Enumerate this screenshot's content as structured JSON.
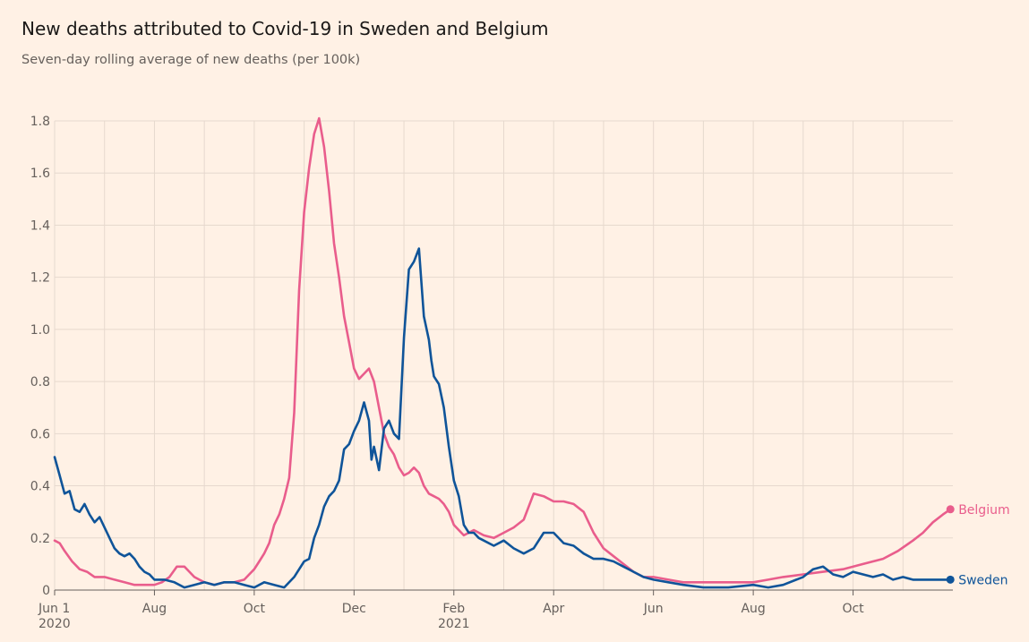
{
  "title": "New deaths attributed to Covid-19 in Sweden and Belgium",
  "subtitle": "Seven-day rolling average of new deaths (per 100k)",
  "colors": {
    "Belgium": "#e95d8c",
    "Sweden": "#0f5499"
  },
  "chart_data": {
    "type": "line",
    "title": "New deaths attributed to Covid-19 in Sweden and Belgium",
    "subtitle": "Seven-day rolling average of new deaths (per 100k)",
    "xlabel": "",
    "ylabel": "",
    "x_unit": "months since Jun 1 2020",
    "xlim": [
      0,
      18.0
    ],
    "ylim": [
      0,
      1.8
    ],
    "grid": true,
    "y_ticks": [
      {
        "value": 0,
        "label": "0"
      },
      {
        "value": 0.2,
        "label": "0.2"
      },
      {
        "value": 0.4,
        "label": "0.4"
      },
      {
        "value": 0.6,
        "label": "0.6"
      },
      {
        "value": 0.8,
        "label": "0.8"
      },
      {
        "value": 1.0,
        "label": "1.0"
      },
      {
        "value": 1.2,
        "label": "1.2"
      },
      {
        "value": 1.4,
        "label": "1.4"
      },
      {
        "value": 1.6,
        "label": "1.6"
      },
      {
        "value": 1.8,
        "label": "1.8"
      }
    ],
    "x_ticks": [
      {
        "value": 0,
        "label": "Jun 1",
        "sublabel": "2020"
      },
      {
        "value": 2,
        "label": "Aug",
        "sublabel": ""
      },
      {
        "value": 4,
        "label": "Oct",
        "sublabel": ""
      },
      {
        "value": 6,
        "label": "Dec",
        "sublabel": ""
      },
      {
        "value": 8,
        "label": "Feb",
        "sublabel": "2021"
      },
      {
        "value": 10,
        "label": "Apr",
        "sublabel": ""
      },
      {
        "value": 12,
        "label": "Jun",
        "sublabel": ""
      },
      {
        "value": 14,
        "label": "Aug",
        "sublabel": ""
      },
      {
        "value": 16,
        "label": "Oct",
        "sublabel": ""
      }
    ],
    "minor_grid_x": [
      1,
      3,
      5,
      7,
      9,
      11,
      13,
      15,
      17
    ],
    "series": [
      {
        "name": "Belgium",
        "label": "Belgium",
        "x": [
          0,
          0.1,
          0.2,
          0.35,
          0.5,
          0.65,
          0.8,
          1.0,
          1.2,
          1.4,
          1.6,
          1.8,
          2.0,
          2.15,
          2.3,
          2.45,
          2.6,
          2.7,
          2.8,
          2.9,
          3.0,
          3.2,
          3.4,
          3.6,
          3.8,
          3.9,
          4.0,
          4.1,
          4.2,
          4.3,
          4.4,
          4.5,
          4.6,
          4.7,
          4.8,
          4.9,
          5.0,
          5.1,
          5.2,
          5.3,
          5.4,
          5.5,
          5.6,
          5.7,
          5.8,
          5.9,
          6.0,
          6.1,
          6.2,
          6.3,
          6.4,
          6.5,
          6.6,
          6.7,
          6.8,
          6.9,
          7.0,
          7.1,
          7.2,
          7.3,
          7.4,
          7.5,
          7.6,
          7.7,
          7.8,
          7.9,
          8.0,
          8.2,
          8.4,
          8.6,
          8.8,
          9.0,
          9.2,
          9.4,
          9.6,
          9.8,
          10.0,
          10.2,
          10.4,
          10.6,
          10.8,
          11.0,
          11.2,
          11.4,
          11.6,
          11.8,
          12.0,
          12.3,
          12.6,
          13.0,
          13.5,
          14.0,
          14.3,
          14.6,
          15.0,
          15.4,
          15.8,
          16.2,
          16.6,
          16.9,
          17.2,
          17.4,
          17.6,
          17.8,
          17.95
        ],
        "values": [
          0.19,
          0.18,
          0.15,
          0.11,
          0.08,
          0.07,
          0.05,
          0.05,
          0.04,
          0.03,
          0.02,
          0.02,
          0.02,
          0.03,
          0.05,
          0.09,
          0.09,
          0.07,
          0.05,
          0.04,
          0.03,
          0.02,
          0.03,
          0.03,
          0.04,
          0.06,
          0.08,
          0.11,
          0.14,
          0.18,
          0.25,
          0.29,
          0.35,
          0.43,
          0.68,
          1.15,
          1.45,
          1.62,
          1.75,
          1.81,
          1.7,
          1.53,
          1.33,
          1.2,
          1.05,
          0.95,
          0.85,
          0.81,
          0.83,
          0.85,
          0.8,
          0.7,
          0.6,
          0.55,
          0.52,
          0.47,
          0.44,
          0.45,
          0.47,
          0.45,
          0.4,
          0.37,
          0.36,
          0.35,
          0.33,
          0.3,
          0.25,
          0.21,
          0.23,
          0.21,
          0.2,
          0.22,
          0.24,
          0.27,
          0.37,
          0.36,
          0.34,
          0.34,
          0.33,
          0.3,
          0.22,
          0.16,
          0.13,
          0.1,
          0.07,
          0.05,
          0.05,
          0.04,
          0.03,
          0.03,
          0.03,
          0.03,
          0.04,
          0.05,
          0.06,
          0.07,
          0.08,
          0.1,
          0.12,
          0.15,
          0.19,
          0.22,
          0.26,
          0.29,
          0.31
        ]
      },
      {
        "name": "Sweden",
        "label": "Sweden",
        "x": [
          0,
          0.1,
          0.2,
          0.3,
          0.4,
          0.5,
          0.6,
          0.7,
          0.8,
          0.9,
          1.0,
          1.1,
          1.2,
          1.3,
          1.4,
          1.5,
          1.6,
          1.7,
          1.8,
          1.9,
          2.0,
          2.2,
          2.4,
          2.6,
          2.8,
          3.0,
          3.2,
          3.4,
          3.6,
          3.8,
          4.0,
          4.2,
          4.4,
          4.6,
          4.8,
          5.0,
          5.1,
          5.2,
          5.3,
          5.4,
          5.5,
          5.6,
          5.7,
          5.8,
          5.9,
          6.0,
          6.1,
          6.2,
          6.3,
          6.35,
          6.4,
          6.5,
          6.6,
          6.7,
          6.8,
          6.9,
          7.0,
          7.1,
          7.2,
          7.3,
          7.4,
          7.5,
          7.55,
          7.6,
          7.7,
          7.8,
          7.9,
          8.0,
          8.1,
          8.2,
          8.3,
          8.4,
          8.5,
          8.6,
          8.8,
          9.0,
          9.2,
          9.4,
          9.6,
          9.8,
          10.0,
          10.2,
          10.4,
          10.6,
          10.8,
          11.0,
          11.2,
          11.4,
          11.6,
          11.8,
          12.0,
          12.3,
          12.6,
          13.0,
          13.5,
          14.0,
          14.3,
          14.6,
          15.0,
          15.2,
          15.4,
          15.6,
          15.8,
          16.0,
          16.2,
          16.4,
          16.6,
          16.8,
          17.0,
          17.2,
          17.4,
          17.6,
          17.8,
          17.95
        ],
        "values": [
          0.51,
          0.44,
          0.37,
          0.38,
          0.31,
          0.3,
          0.33,
          0.29,
          0.26,
          0.28,
          0.24,
          0.2,
          0.16,
          0.14,
          0.13,
          0.14,
          0.12,
          0.09,
          0.07,
          0.06,
          0.04,
          0.04,
          0.03,
          0.01,
          0.02,
          0.03,
          0.02,
          0.03,
          0.03,
          0.02,
          0.01,
          0.03,
          0.02,
          0.01,
          0.05,
          0.11,
          0.12,
          0.2,
          0.25,
          0.32,
          0.36,
          0.38,
          0.42,
          0.54,
          0.56,
          0.61,
          0.65,
          0.72,
          0.65,
          0.5,
          0.55,
          0.46,
          0.62,
          0.65,
          0.6,
          0.58,
          0.97,
          1.23,
          1.26,
          1.31,
          1.05,
          0.96,
          0.88,
          0.82,
          0.79,
          0.7,
          0.55,
          0.42,
          0.36,
          0.25,
          0.22,
          0.22,
          0.2,
          0.19,
          0.17,
          0.19,
          0.16,
          0.14,
          0.16,
          0.22,
          0.22,
          0.18,
          0.17,
          0.14,
          0.12,
          0.12,
          0.11,
          0.09,
          0.07,
          0.05,
          0.04,
          0.03,
          0.02,
          0.01,
          0.01,
          0.02,
          0.01,
          0.02,
          0.05,
          0.08,
          0.09,
          0.06,
          0.05,
          0.07,
          0.06,
          0.05,
          0.06,
          0.04,
          0.05,
          0.04,
          0.04,
          0.04,
          0.04,
          0.04
        ]
      }
    ]
  }
}
